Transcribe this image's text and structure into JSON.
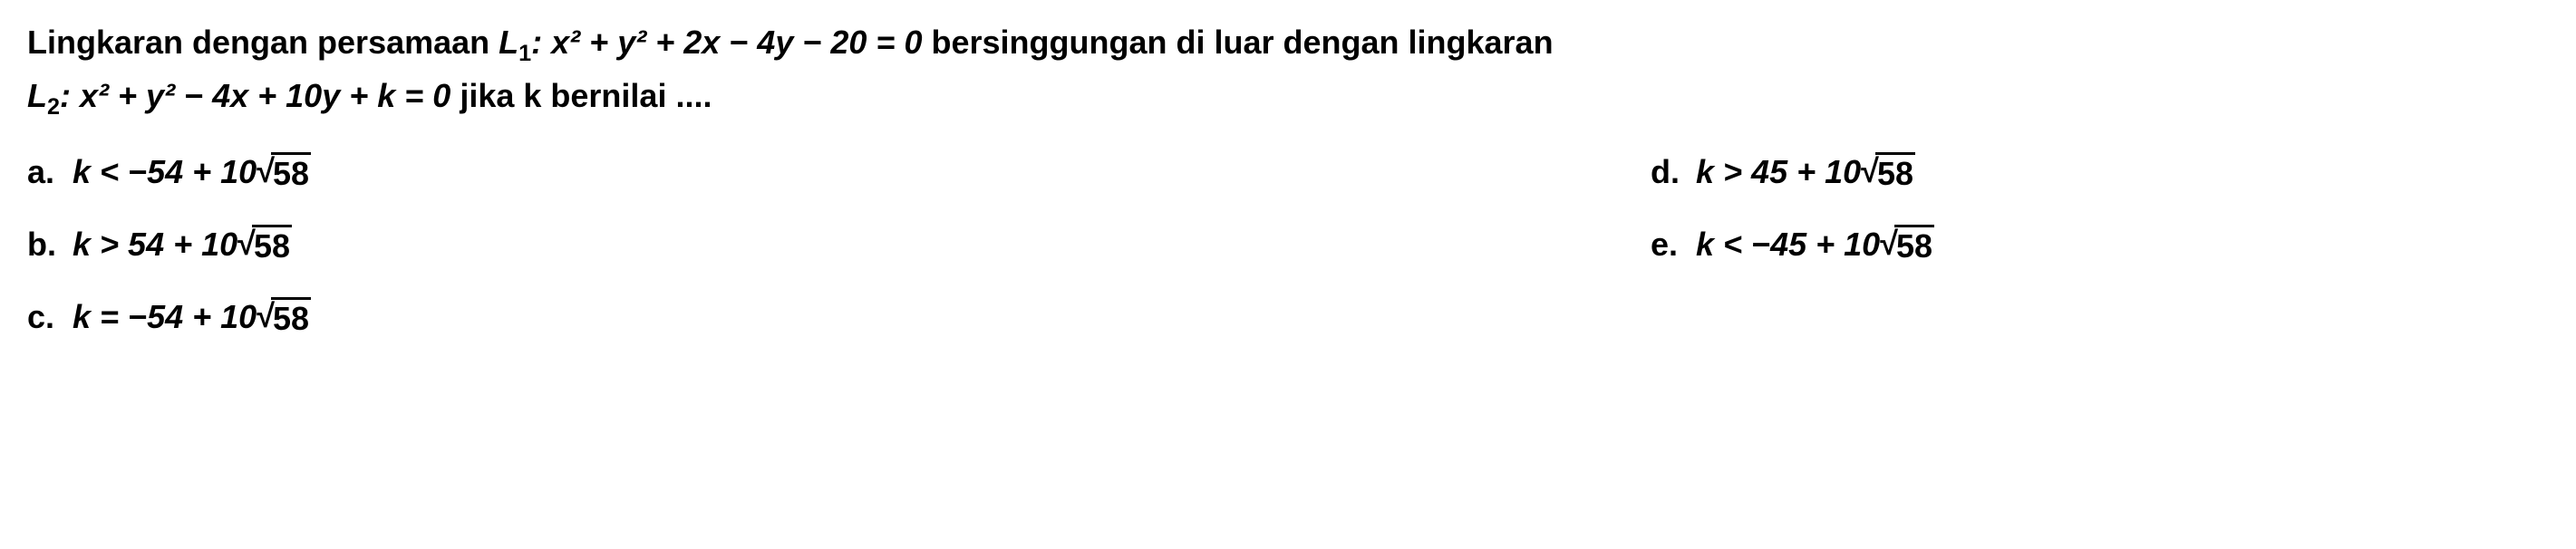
{
  "question": {
    "text_part1": "Lingkaran dengan persamaan ",
    "eq1_label": "L",
    "eq1_sub": "1",
    "eq1_body": ": x² + y² + 2x − 4y − 20 = 0",
    "text_part2": " bersinggungan di luar dengan lingkaran",
    "eq2_label": "L",
    "eq2_sub": "2",
    "eq2_body": ": x² + y² − 4x + 10y + k = 0",
    "text_part3": " jika k bernilai ....",
    "font_size": 36,
    "font_weight": "bold",
    "color": "#000000"
  },
  "options": {
    "a": {
      "label": "a.",
      "prefix": "k < −54 + 10",
      "sqrt_value": "58"
    },
    "b": {
      "label": "b.",
      "prefix": "k > 54 + 10",
      "sqrt_value": "58"
    },
    "c": {
      "label": "c.",
      "prefix": "k = −54 + 10",
      "sqrt_value": "58"
    },
    "d": {
      "label": "d.",
      "prefix": "k > 45 + 10",
      "sqrt_value": "58"
    },
    "e": {
      "label": "e.",
      "prefix": "k < −45 + 10",
      "sqrt_value": "58"
    }
  },
  "styling": {
    "background_color": "#ffffff",
    "text_color": "#000000",
    "font_family": "Arial",
    "option_font_size": 36,
    "option_gap": 35,
    "sqrt_border_width": 3
  }
}
